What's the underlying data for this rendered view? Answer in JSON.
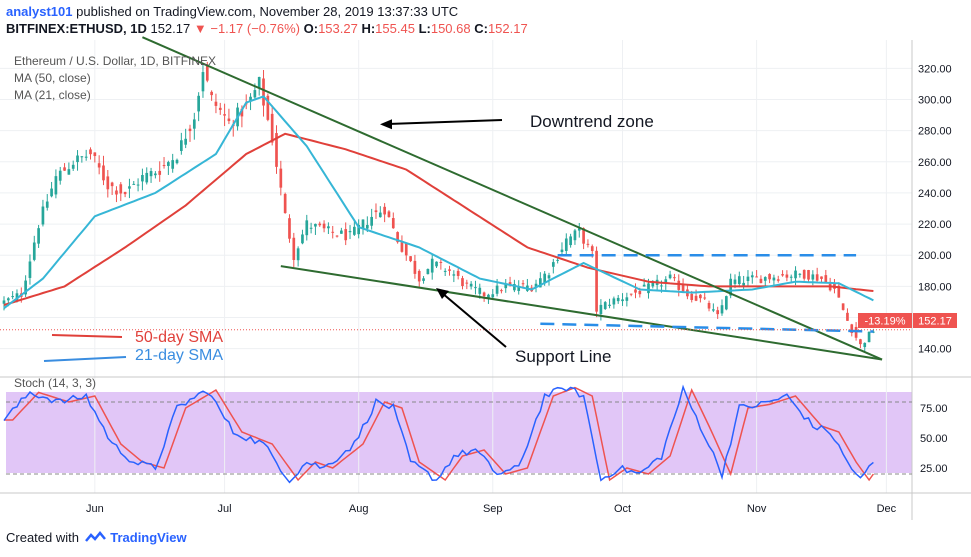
{
  "header": {
    "user": "analyst101",
    "published_text": "published on TradingView.com, November 28, 2019 13:37:33 UTC",
    "symbol": "BITFINEX:ETHUSD, 1D",
    "last": "152.17",
    "change_arrow": "▼",
    "change": "−1.17 (−0.76%)",
    "o_label": "O:",
    "o_value": "153.27",
    "h_label": "H:",
    "h_value": "155.45",
    "l_label": "L:",
    "l_value": "150.68",
    "c_label": "C:",
    "c_value": "152.17"
  },
  "legend": {
    "title": "Ethereum / U.S. Dollar, 1D, BITFINEX",
    "ma50": "MA (50, close)",
    "ma21": "MA (21, close)",
    "sma50_label": "50-day SMA",
    "sma21_label": "21-day SMA"
  },
  "annotations": {
    "downtrend": "Downtrend zone",
    "support": "Support Line"
  },
  "price_tag": {
    "pct": "-13.19%",
    "value": "152.17"
  },
  "stoch": {
    "label": "Stoch (14, 3, 3)"
  },
  "footer": {
    "created_with": "Created with",
    "brand": "TradingView"
  },
  "colors": {
    "up": "#26a69a",
    "down": "#ef5350",
    "ma50": "#e0403a",
    "ma21": "#36b6d6",
    "trend": "#2e6b30",
    "dash": "#2a8de8",
    "stoch_bg": "#e1c6f7",
    "stoch_k": "#2962ff",
    "stoch_d": "#ef5350"
  },
  "chart_data": {
    "type": "candlestick",
    "title": "Ethereum / U.S. Dollar, 1D, BITFINEX",
    "x_ticks": [
      "Jun",
      "Jul",
      "Aug",
      "Sep",
      "Oct",
      "Nov",
      "Dec"
    ],
    "x_range": [
      "2019-05-11",
      "2019-12-06"
    ],
    "y_ticks": [
      140,
      160,
      180,
      200,
      220,
      240,
      260,
      280,
      300,
      320
    ],
    "ylim": [
      125,
      335
    ],
    "stoch_ticks": [
      "25.00",
      "50.00",
      "75.00"
    ],
    "stoch_ylim": [
      5,
      100
    ],
    "stoch_bands": [
      20,
      80
    ],
    "grid": true,
    "close_anchors": {
      "2019-05-11": 170,
      "2019-05-15": 175,
      "2019-05-19": 220,
      "2019-05-23": 250,
      "2019-05-27": 260,
      "2019-05-31": 265,
      "2019-06-04": 245,
      "2019-06-08": 240,
      "2019-06-12": 250,
      "2019-06-16": 255,
      "2019-06-20": 265,
      "2019-06-24": 290,
      "2019-06-26": 320,
      "2019-06-28": 300,
      "2019-07-02": 285,
      "2019-07-06": 295,
      "2019-07-09": 310,
      "2019-07-12": 275,
      "2019-07-15": 225,
      "2019-07-17": 200,
      "2019-07-20": 220,
      "2019-07-25": 215,
      "2019-07-30": 212,
      "2019-08-04": 225,
      "2019-08-07": 230,
      "2019-08-10": 210,
      "2019-08-15": 185,
      "2019-08-18": 195,
      "2019-08-22": 190,
      "2019-08-26": 180,
      "2019-08-30": 175,
      "2019-09-04": 180,
      "2019-09-10": 180,
      "2019-09-14": 190,
      "2019-09-18": 210,
      "2019-09-21": 215,
      "2019-09-24": 200,
      "2019-09-25": 165,
      "2019-09-28": 170,
      "2019-10-03": 175,
      "2019-10-08": 180,
      "2019-10-12": 185,
      "2019-10-16": 175,
      "2019-10-20": 170,
      "2019-10-23": 160,
      "2019-10-26": 183,
      "2019-11-01": 185,
      "2019-11-07": 187,
      "2019-11-12": 188,
      "2019-11-16": 185,
      "2019-11-19": 178,
      "2019-11-22": 158,
      "2019-11-25": 142,
      "2019-11-28": 152
    },
    "ma50_points": {
      "2019-05-11": 168,
      "2019-05-25": 180,
      "2019-06-08": 205,
      "2019-06-22": 232,
      "2019-07-06": 265,
      "2019-07-15": 278,
      "2019-07-29": 268,
      "2019-08-12": 255,
      "2019-08-26": 230,
      "2019-09-09": 205,
      "2019-09-23": 192,
      "2019-10-07": 183,
      "2019-10-21": 180,
      "2019-11-04": 180,
      "2019-11-18": 180,
      "2019-11-28": 177
    },
    "ma21_points": {
      "2019-05-11": 166,
      "2019-05-20": 185,
      "2019-06-01": 225,
      "2019-06-15": 240,
      "2019-06-29": 265,
      "2019-07-06": 298,
      "2019-07-10": 302,
      "2019-07-20": 270,
      "2019-08-01": 218,
      "2019-08-15": 205,
      "2019-08-29": 185,
      "2019-09-10": 178,
      "2019-09-22": 195,
      "2019-10-05": 178,
      "2019-10-17": 176,
      "2019-10-31": 178,
      "2019-11-10": 183,
      "2019-11-20": 182,
      "2019-11-28": 171
    },
    "downtrend_line": {
      "from": [
        "2019-06-12",
        340
      ],
      "to": [
        "2019-11-30",
        133
      ]
    },
    "support_line": {
      "from": [
        "2019-07-14",
        193
      ],
      "to": [
        "2019-11-30",
        133
      ]
    },
    "resistance_dashed": {
      "from": [
        "2019-09-16",
        200
      ],
      "to": [
        "2019-11-24",
        200
      ],
      "value": 200
    },
    "support_dashed": {
      "from": [
        "2019-09-12",
        156
      ],
      "to": [
        "2019-11-28",
        151
      ],
      "value": 156
    },
    "last_price": 152.17,
    "stoch_k_anchors": {
      "2019-05-11": 65,
      "2019-05-17": 88,
      "2019-05-24": 80,
      "2019-05-30": 85,
      "2019-06-05": 45,
      "2019-06-10": 30,
      "2019-06-15": 25,
      "2019-06-20": 75,
      "2019-06-27": 90,
      "2019-07-03": 55,
      "2019-07-10": 45,
      "2019-07-16": 15,
      "2019-07-20": 30,
      "2019-07-24": 25,
      "2019-07-31": 45,
      "2019-08-05": 80,
      "2019-08-09": 75,
      "2019-08-13": 30,
      "2019-08-19": 15,
      "2019-08-23": 35,
      "2019-08-28": 40,
      "2019-09-02": 20,
      "2019-09-07": 25,
      "2019-09-13": 85,
      "2019-09-18": 92,
      "2019-09-22": 85,
      "2019-09-26": 15,
      "2019-09-30": 25,
      "2019-10-05": 20,
      "2019-10-10": 35,
      "2019-10-15": 90,
      "2019-10-19": 60,
      "2019-10-24": 20,
      "2019-10-28": 75,
      "2019-11-02": 78,
      "2019-11-08": 85,
      "2019-11-14": 60,
      "2019-11-18": 55,
      "2019-11-22": 30,
      "2019-11-25": 15,
      "2019-11-28": 30
    },
    "stoch_d_lag_days": 2
  }
}
